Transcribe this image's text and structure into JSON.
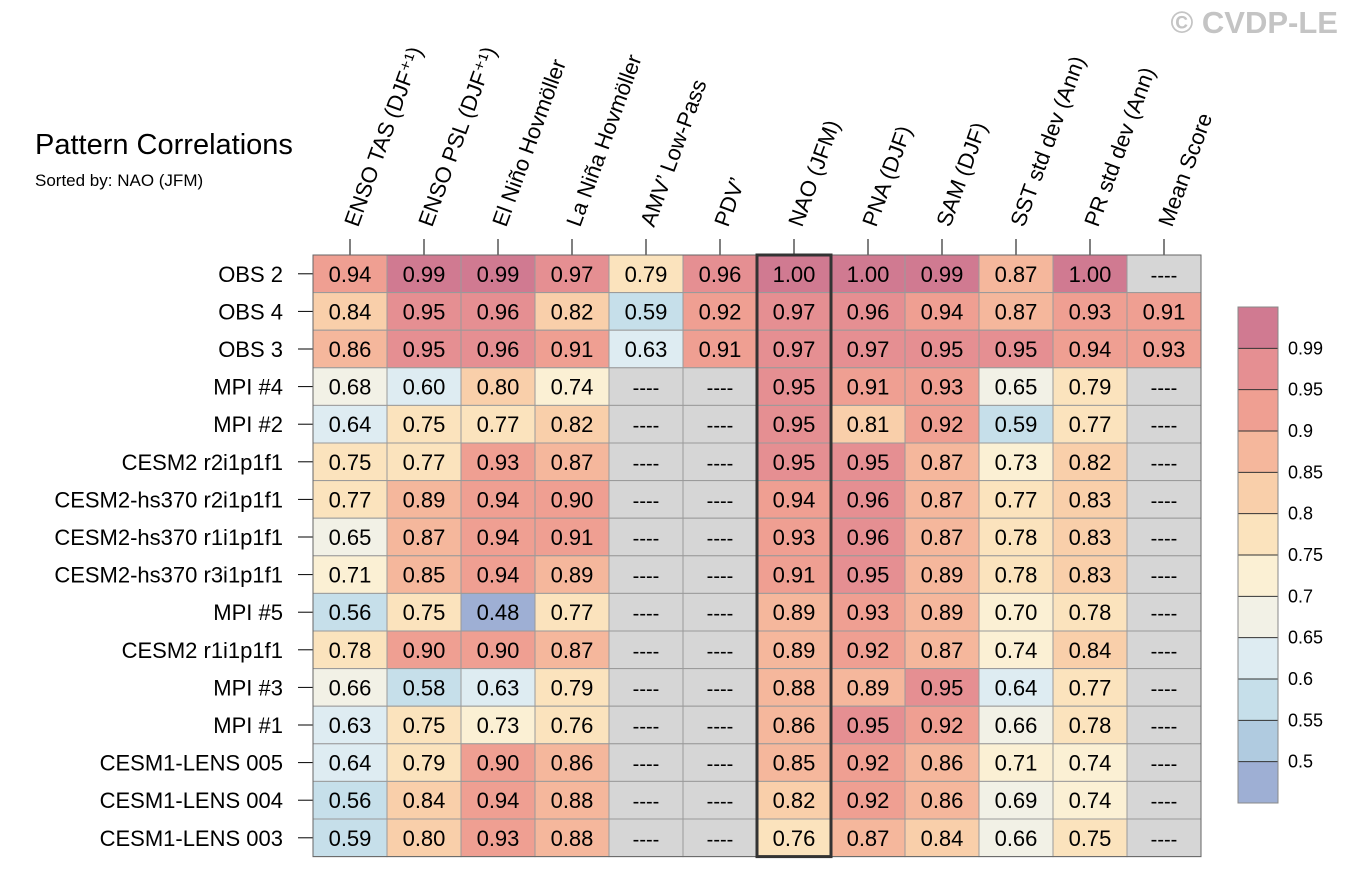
{
  "watermark": "© CVDP-LE",
  "chart_data": {
    "type": "heatmap",
    "title": "Pattern Correlations",
    "subtitle": "Sorted by: NAO (JFM)",
    "sorted_by": "NAO (JFM)",
    "missing_label": "----",
    "columns": [
      "ENSO TAS (DJF⁺¹)",
      "ENSO PSL (DJF⁺¹)",
      "El Niño Hovmöller",
      "La Niña Hovmöller",
      "AMV’ Low-Pass",
      "PDV’",
      "NAO (JFM)",
      "PNA (DJF)",
      "SAM (DJF)",
      "SST std dev (Ann)",
      "PR std dev (Ann)",
      "Mean Score"
    ],
    "rows": [
      "OBS 2",
      "OBS 4",
      "OBS 3",
      "MPI #4",
      "MPI #2",
      "CESM2 r2i1p1f1",
      "CESM2-hs370 r2i1p1f1",
      "CESM2-hs370 r1i1p1f1",
      "CESM2-hs370 r3i1p1f1",
      "MPI #5",
      "CESM2 r1i1p1f1",
      "MPI #3",
      "MPI #1",
      "CESM1-LENS 005",
      "CESM1-LENS 004",
      "CESM1-LENS 003"
    ],
    "values": [
      [
        "0.94",
        "0.99",
        "0.99",
        "0.97",
        "0.79",
        "0.96",
        "1.00",
        "1.00",
        "0.99",
        "0.87",
        "1.00",
        null
      ],
      [
        "0.84",
        "0.95",
        "0.96",
        "0.82",
        "0.59",
        "0.92",
        "0.97",
        "0.96",
        "0.94",
        "0.87",
        "0.93",
        "0.91"
      ],
      [
        "0.86",
        "0.95",
        "0.96",
        "0.91",
        "0.63",
        "0.91",
        "0.97",
        "0.97",
        "0.95",
        "0.95",
        "0.94",
        "0.93"
      ],
      [
        "0.68",
        "0.60",
        "0.80",
        "0.74",
        null,
        null,
        "0.95",
        "0.91",
        "0.93",
        "0.65",
        "0.79",
        null
      ],
      [
        "0.64",
        "0.75",
        "0.77",
        "0.82",
        null,
        null,
        "0.95",
        "0.81",
        "0.92",
        "0.59",
        "0.77",
        null
      ],
      [
        "0.75",
        "0.77",
        "0.93",
        "0.87",
        null,
        null,
        "0.95",
        "0.95",
        "0.87",
        "0.73",
        "0.82",
        null
      ],
      [
        "0.77",
        "0.89",
        "0.94",
        "0.90",
        null,
        null,
        "0.94",
        "0.96",
        "0.87",
        "0.77",
        "0.83",
        null
      ],
      [
        "0.65",
        "0.87",
        "0.94",
        "0.91",
        null,
        null,
        "0.93",
        "0.96",
        "0.87",
        "0.78",
        "0.83",
        null
      ],
      [
        "0.71",
        "0.85",
        "0.94",
        "0.89",
        null,
        null,
        "0.91",
        "0.95",
        "0.89",
        "0.78",
        "0.83",
        null
      ],
      [
        "0.56",
        "0.75",
        "0.48",
        "0.77",
        null,
        null,
        "0.89",
        "0.93",
        "0.89",
        "0.70",
        "0.78",
        null
      ],
      [
        "0.78",
        "0.90",
        "0.90",
        "0.87",
        null,
        null,
        "0.89",
        "0.92",
        "0.87",
        "0.74",
        "0.84",
        null
      ],
      [
        "0.66",
        "0.58",
        "0.63",
        "0.79",
        null,
        null,
        "0.88",
        "0.89",
        "0.95",
        "0.64",
        "0.77",
        null
      ],
      [
        "0.63",
        "0.75",
        "0.73",
        "0.76",
        null,
        null,
        "0.86",
        "0.95",
        "0.92",
        "0.66",
        "0.78",
        null
      ],
      [
        "0.64",
        "0.79",
        "0.90",
        "0.86",
        null,
        null,
        "0.85",
        "0.92",
        "0.86",
        "0.71",
        "0.74",
        null
      ],
      [
        "0.56",
        "0.84",
        "0.94",
        "0.88",
        null,
        null,
        "0.82",
        "0.92",
        "0.86",
        "0.69",
        "0.74",
        null
      ],
      [
        "0.59",
        "0.80",
        "0.93",
        "0.88",
        null,
        null,
        "0.76",
        "0.87",
        "0.84",
        "0.66",
        "0.75",
        null
      ]
    ],
    "colorbar": {
      "ticks": [
        "0.99",
        "0.95",
        "0.9",
        "0.85",
        "0.8",
        "0.75",
        "0.7",
        "0.65",
        "0.6",
        "0.55",
        "0.5"
      ],
      "bins": [
        1.0,
        0.99,
        0.95,
        0.9,
        0.85,
        0.8,
        0.75,
        0.7,
        0.65,
        0.6,
        0.55,
        0.5
      ],
      "colors": [
        "#d07a91",
        "#e58f92",
        "#ef9f92",
        "#f5b79c",
        "#f9cfaa",
        "#fbe3bd",
        "#fbf0d4",
        "#f2f1e6",
        "#deecf2",
        "#c6dfea",
        "#b0cbe0",
        "#9eafd4"
      ]
    },
    "missing_color": "#d6d6d6"
  }
}
